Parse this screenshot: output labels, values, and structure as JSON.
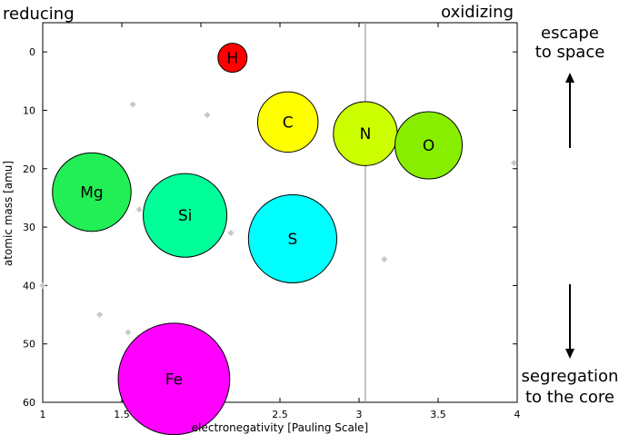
{
  "annotations": {
    "reducing": "reducing",
    "oxidizing": "oxidizing",
    "escape": [
      "escape",
      "to space"
    ],
    "segregation": [
      "segregation",
      "to the core"
    ]
  },
  "chart_data": {
    "type": "scatter",
    "xlabel": "electronegativity [Pauling Scale]",
    "ylabel": "atomic mass [amu]",
    "xlim": [
      1,
      4
    ],
    "ylim": [
      60,
      -5
    ],
    "y_inverted": true,
    "grid": false,
    "x_ticks": [
      1,
      1.5,
      2,
      2.5,
      3,
      3.5,
      4
    ],
    "x_tick_labels": [
      "1",
      "1.5",
      "2",
      "2.5",
      "3",
      "3.5",
      "4"
    ],
    "y_ticks": [
      0,
      10,
      20,
      30,
      40,
      50,
      60
    ],
    "y_tick_labels": [
      "0",
      "10",
      "20",
      "30",
      "40",
      "50",
      "60"
    ],
    "reference_line_x": 3.04,
    "bubbles": [
      {
        "label": "H",
        "x": 2.2,
        "y": 1,
        "color": "#ff0000"
      },
      {
        "label": "C",
        "x": 2.55,
        "y": 12,
        "color": "#ffff00"
      },
      {
        "label": "N",
        "x": 3.04,
        "y": 14,
        "color": "#ccff00"
      },
      {
        "label": "O",
        "x": 3.44,
        "y": 16,
        "color": "#88ee00"
      },
      {
        "label": "Mg",
        "x": 1.31,
        "y": 24,
        "color": "#22ee55"
      },
      {
        "label": "Si",
        "x": 1.9,
        "y": 28,
        "color": "#00ff99"
      },
      {
        "label": "S",
        "x": 2.58,
        "y": 32,
        "color": "#00ffff"
      },
      {
        "label": "Fe",
        "x": 1.83,
        "y": 56,
        "color": "#ff00ff"
      }
    ],
    "minor_points": [
      {
        "x": 1.57,
        "y": 9
      },
      {
        "x": 2.04,
        "y": 10.8
      },
      {
        "x": 3.98,
        "y": 19
      },
      {
        "x": 1.61,
        "y": 27
      },
      {
        "x": 2.19,
        "y": 31
      },
      {
        "x": 3.16,
        "y": 35.5
      },
      {
        "x": 1.0,
        "y": 40
      },
      {
        "x": 1.36,
        "y": 45
      },
      {
        "x": 1.54,
        "y": 48
      },
      {
        "x": 1.63,
        "y": 51
      },
      {
        "x": 1.66,
        "y": 52
      },
      {
        "x": 1.55,
        "y": 55
      },
      {
        "x": 1.88,
        "y": 58.7
      },
      {
        "x": 1.91,
        "y": 58.7
      }
    ]
  }
}
